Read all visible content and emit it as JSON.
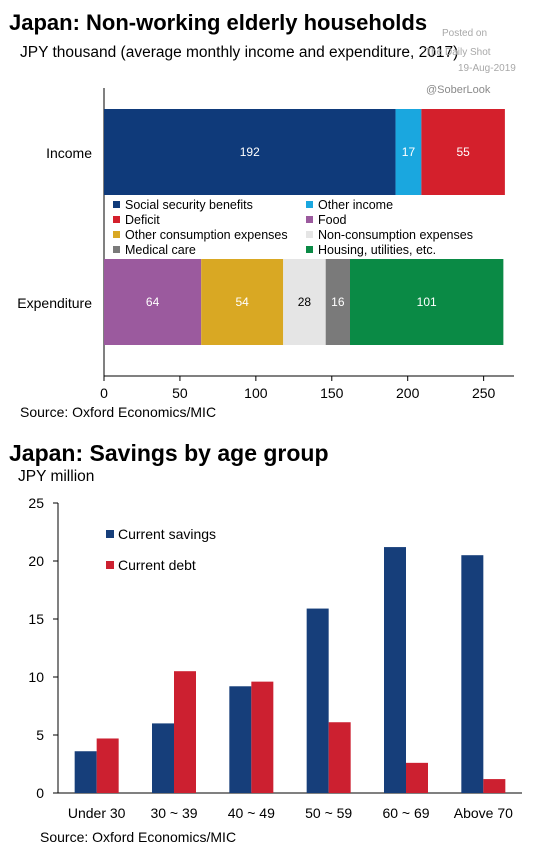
{
  "watermark": {
    "line1": "Posted on",
    "line2": "The Daily Shot",
    "line3": "19-Aug-2019",
    "handle": "@SoberLook"
  },
  "chart_data": [
    {
      "type": "bar",
      "orientation": "horizontal",
      "stacked": true,
      "title": "Japan: Non-working elderly households",
      "subtitle": "JPY thousand (average monthly income and expenditure, 2017)",
      "source": "Source: Oxford Economics/MIC",
      "categories": [
        "Income",
        "Expenditure"
      ],
      "xlim": [
        0,
        270
      ],
      "xticks": [
        0,
        50,
        100,
        150,
        200,
        250
      ],
      "grid": false,
      "legend_placement": "center",
      "series": [
        {
          "name": "Social security benefits",
          "color": "#0f3a7a",
          "values": [
            192,
            0
          ],
          "labels": [
            "192",
            ""
          ]
        },
        {
          "name": "Other income",
          "color": "#1aa7df",
          "values": [
            17,
            0
          ],
          "labels": [
            "17",
            ""
          ]
        },
        {
          "name": "Deficit",
          "color": "#d4202c",
          "values": [
            55,
            0
          ],
          "labels": [
            "55",
            ""
          ]
        },
        {
          "name": "Food",
          "color": "#9b5a9e",
          "values": [
            0,
            64
          ],
          "labels": [
            "",
            "64"
          ]
        },
        {
          "name": "Other consumption expenses",
          "color": "#d9a823",
          "values": [
            0,
            54
          ],
          "labels": [
            "",
            "54"
          ]
        },
        {
          "name": "Non-consumption expenses",
          "color": "#e5e5e5",
          "values": [
            0,
            28
          ],
          "labels": [
            "",
            "28"
          ]
        },
        {
          "name": "Medical care",
          "color": "#7a7a7a",
          "values": [
            0,
            16
          ],
          "labels": [
            "",
            "16"
          ]
        },
        {
          "name": "Housing, utilities, etc.",
          "color": "#0a8a45",
          "values": [
            0,
            101
          ],
          "labels": [
            "",
            "101"
          ]
        }
      ]
    },
    {
      "type": "bar",
      "title": "Japan: Savings by age group",
      "ylabel": "JPY million",
      "source": "Source: Oxford Economics/MIC",
      "categories": [
        "Under 30",
        "30 ~ 39",
        "40 ~ 49",
        "50 ~ 59",
        "60 ~ 69",
        "Above 70"
      ],
      "ylim": [
        0,
        25
      ],
      "yticks": [
        0,
        5,
        10,
        15,
        20,
        25
      ],
      "grid": false,
      "legend_placement": "top-left",
      "series": [
        {
          "name": "Current savings",
          "color": "#163e7a",
          "values": [
            3.6,
            6.0,
            9.2,
            15.9,
            21.2,
            20.5
          ]
        },
        {
          "name": "Current debt",
          "color": "#cc2030",
          "values": [
            4.7,
            10.5,
            9.6,
            6.1,
            2.6,
            1.2
          ]
        }
      ]
    }
  ]
}
